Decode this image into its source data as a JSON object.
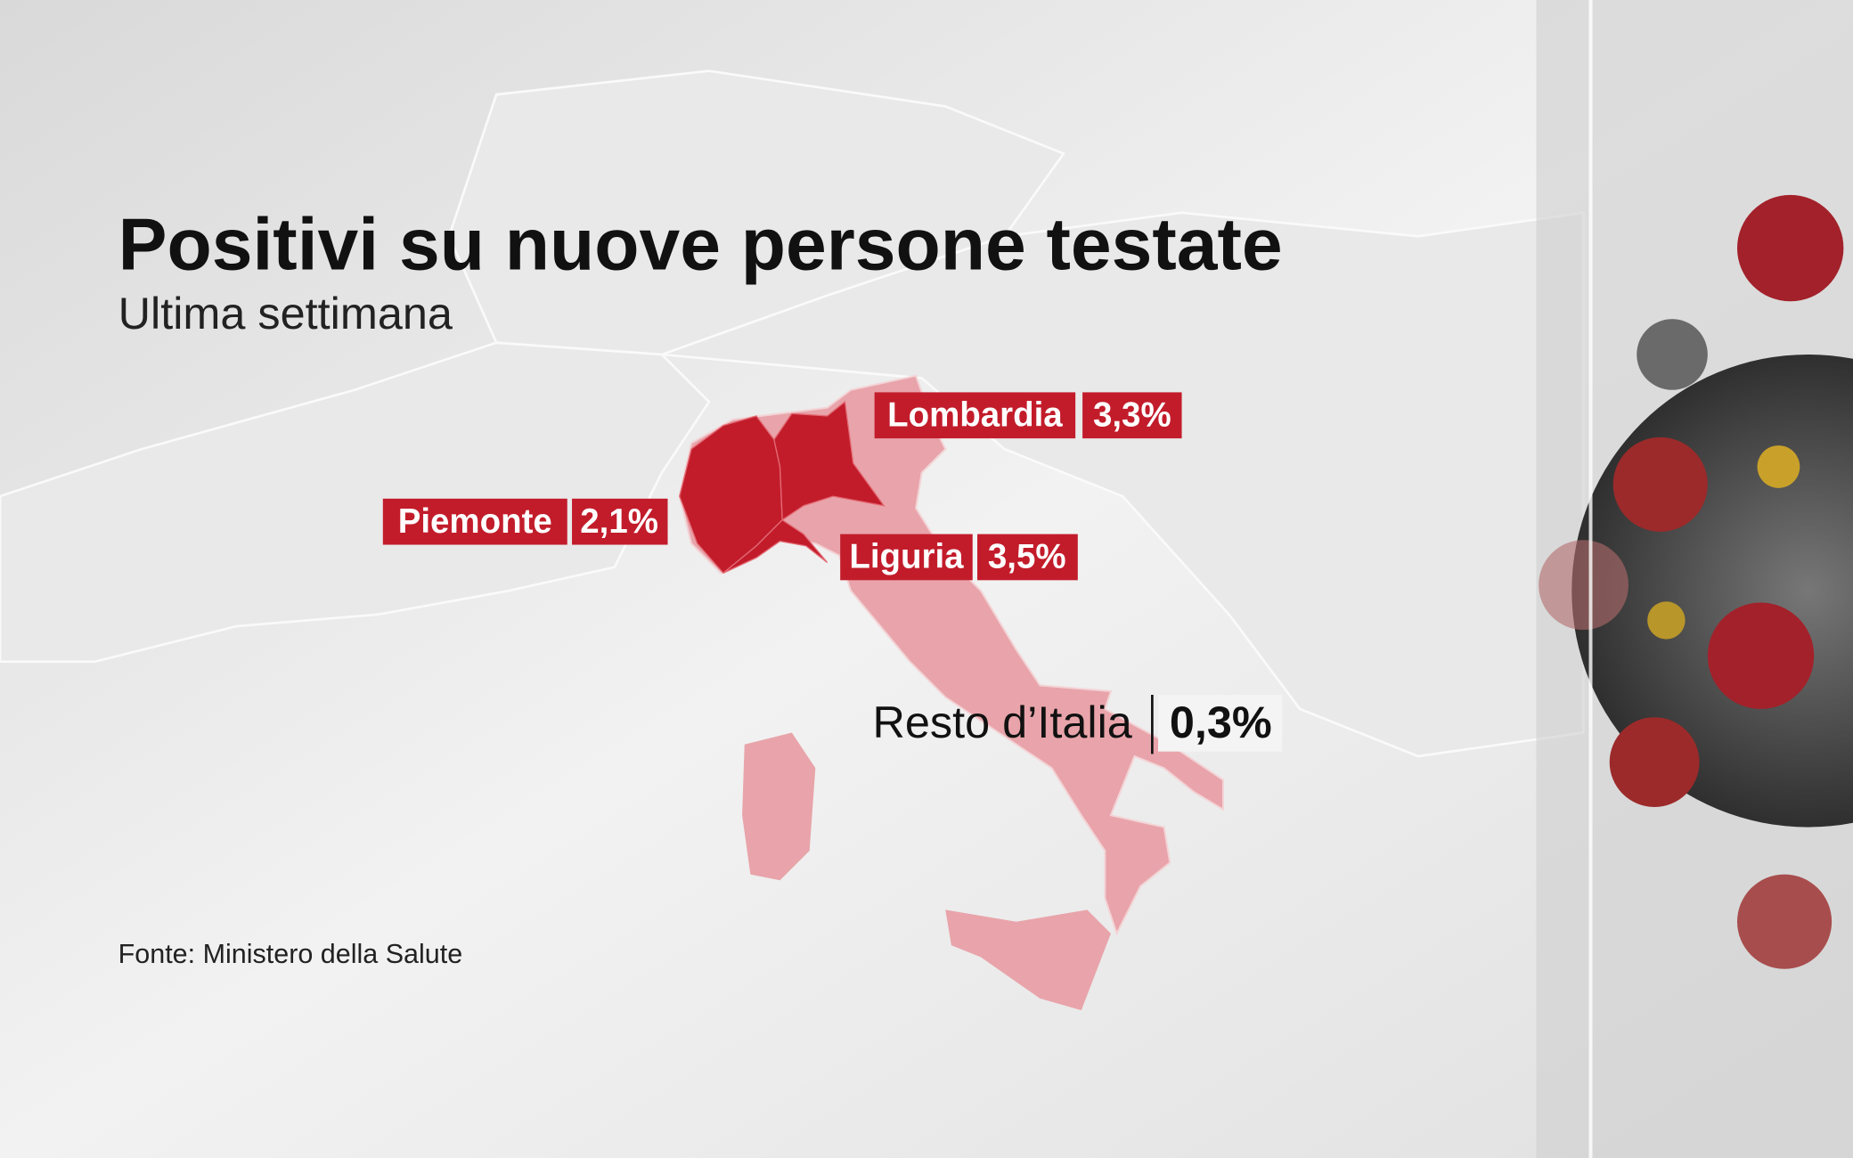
{
  "title": "Positivi su nuove persone testate",
  "subtitle": "Ultima settimana",
  "regions": [
    {
      "name": "Lombardia",
      "value": "3,3%"
    },
    {
      "name": "Piemonte",
      "value": "2,1%"
    },
    {
      "name": "Liguria",
      "value": "3,5%"
    },
    {
      "name": "Resto d’Italia",
      "value": "0,3%"
    }
  ],
  "source": "Fonte: Ministero della Salute"
}
